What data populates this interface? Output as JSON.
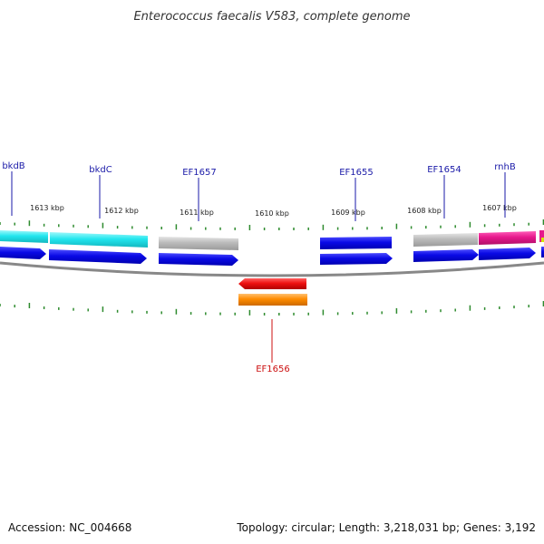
{
  "title": "Enterococcus faecalis V583, complete genome",
  "footer": {
    "accession": "Accession: NC_004668",
    "summary": "Topology: circular; Length: 3,218,031 bp; Genes: 3,192"
  },
  "colors": {
    "backbone": "#888888",
    "tick": "#2e8b2e",
    "label_top": "#1a1aa8",
    "label_bottom": "#cc1111"
  },
  "scale": {
    "labels": [
      "1613 kbp",
      "1612 kbp",
      "1611 kbp",
      "1610 kbp",
      "1609 kbp",
      "1608 kbp",
      "1607 kbp"
    ]
  },
  "gene_labels_top": [
    "bkdB",
    "bkdC",
    "EF1657",
    "EF1655",
    "EF1654",
    "rnhB"
  ],
  "gene_labels_bottom": [
    "EF1656"
  ],
  "legend_colors": {
    "cyan": "#22e6ee",
    "gray": "#b8b8b8",
    "blue": "#0a0ae6",
    "magenta": "#e6188c",
    "red": "#ee1111",
    "orange": "#ff8c00"
  }
}
